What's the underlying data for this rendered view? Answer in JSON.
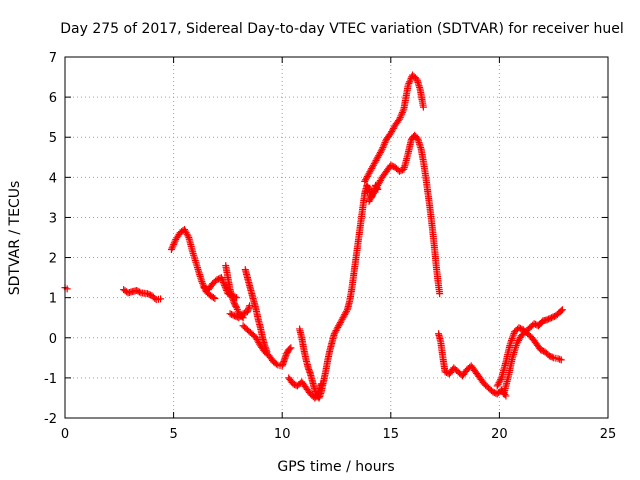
{
  "chart_data": {
    "type": "scatter",
    "title": "Day 275 of 2017, Sidereal Day-to-day VTEC variation (SDTVAR) for receiver huel",
    "xlabel": "GPS time / hours",
    "ylabel": "SDTVAR / TECUs",
    "xlim": [
      0,
      25
    ],
    "ylim": [
      -2,
      7
    ],
    "x_ticks": [
      "0",
      "5",
      "10",
      "15",
      "20",
      "25"
    ],
    "y_ticks": [
      "-2",
      "-1",
      "0",
      "1",
      "2",
      "3",
      "4",
      "5",
      "6",
      "7"
    ],
    "grid": true,
    "marker": "+",
    "series": [
      {
        "name": "SDTVAR",
        "color": "#ff0000",
        "segments": [
          [
            [
              0.0,
              1.25
            ],
            [
              0.1,
              1.22
            ]
          ],
          [
            [
              2.7,
              1.2
            ],
            [
              2.9,
              1.12
            ],
            [
              3.1,
              1.15
            ],
            [
              3.3,
              1.18
            ],
            [
              3.5,
              1.12
            ],
            [
              3.8,
              1.1
            ],
            [
              4.0,
              1.05
            ],
            [
              4.2,
              0.95
            ],
            [
              4.4,
              0.97
            ]
          ],
          [
            [
              4.9,
              2.2
            ],
            [
              5.1,
              2.45
            ],
            [
              5.3,
              2.62
            ],
            [
              5.5,
              2.7
            ],
            [
              5.7,
              2.5
            ],
            [
              5.9,
              2.1
            ],
            [
              6.1,
              1.75
            ],
            [
              6.3,
              1.4
            ],
            [
              6.5,
              1.15
            ],
            [
              6.7,
              1.05
            ],
            [
              6.9,
              0.98
            ]
          ],
          [
            [
              6.4,
              1.25
            ],
            [
              6.6,
              1.2
            ],
            [
              6.8,
              1.35
            ],
            [
              7.0,
              1.45
            ],
            [
              7.2,
              1.5
            ],
            [
              7.35,
              1.3
            ],
            [
              7.5,
              1.1
            ],
            [
              7.7,
              1.05
            ],
            [
              7.9,
              1.0
            ]
          ],
          [
            [
              7.4,
              1.8
            ],
            [
              7.5,
              1.5
            ],
            [
              7.6,
              1.2
            ],
            [
              7.7,
              1.0
            ],
            [
              7.8,
              0.85
            ],
            [
              7.9,
              0.75
            ],
            [
              8.0,
              0.62
            ],
            [
              8.1,
              0.55
            ],
            [
              8.2,
              0.5
            ]
          ],
          [
            [
              7.6,
              0.6
            ],
            [
              7.8,
              0.55
            ],
            [
              8.0,
              0.5
            ],
            [
              8.2,
              0.6
            ],
            [
              8.4,
              0.65
            ],
            [
              8.5,
              0.8
            ]
          ],
          [
            [
              8.3,
              1.7
            ],
            [
              8.4,
              1.5
            ],
            [
              8.5,
              1.3
            ],
            [
              8.6,
              1.1
            ],
            [
              8.7,
              0.9
            ],
            [
              8.8,
              0.7
            ],
            [
              8.9,
              0.45
            ],
            [
              9.0,
              0.25
            ],
            [
              9.1,
              0.0
            ],
            [
              9.2,
              -0.2
            ],
            [
              9.3,
              -0.35
            ]
          ],
          [
            [
              8.2,
              0.3
            ],
            [
              8.4,
              0.2
            ],
            [
              8.6,
              0.1
            ],
            [
              8.8,
              0.0
            ],
            [
              9.0,
              -0.2
            ],
            [
              9.2,
              -0.35
            ],
            [
              9.4,
              -0.45
            ],
            [
              9.6,
              -0.6
            ],
            [
              9.8,
              -0.68
            ],
            [
              10.0,
              -0.7
            ],
            [
              10.1,
              -0.55
            ],
            [
              10.2,
              -0.4
            ],
            [
              10.3,
              -0.3
            ],
            [
              10.4,
              -0.25
            ]
          ],
          [
            [
              10.3,
              -1.0
            ],
            [
              10.5,
              -1.15
            ],
            [
              10.7,
              -1.2
            ],
            [
              10.9,
              -1.1
            ],
            [
              11.1,
              -1.25
            ],
            [
              11.3,
              -1.4
            ],
            [
              11.5,
              -1.5
            ],
            [
              11.6,
              -1.45
            ],
            [
              11.7,
              -1.3
            ],
            [
              11.8,
              -1.15
            ]
          ],
          [
            [
              10.8,
              0.22
            ],
            [
              10.9,
              0.0
            ],
            [
              11.0,
              -0.3
            ],
            [
              11.1,
              -0.55
            ],
            [
              11.2,
              -0.75
            ],
            [
              11.3,
              -0.9
            ],
            [
              11.4,
              -1.1
            ],
            [
              11.5,
              -1.3
            ],
            [
              11.6,
              -1.45
            ],
            [
              11.7,
              -1.5
            ],
            [
              11.8,
              -1.35
            ],
            [
              11.9,
              -1.1
            ],
            [
              12.0,
              -0.85
            ],
            [
              12.1,
              -0.55
            ],
            [
              12.2,
              -0.3
            ],
            [
              12.3,
              -0.1
            ],
            [
              12.4,
              0.1
            ],
            [
              12.6,
              0.3
            ],
            [
              12.8,
              0.5
            ],
            [
              13.0,
              0.7
            ],
            [
              13.1,
              0.9
            ],
            [
              13.2,
              1.2
            ],
            [
              13.3,
              1.6
            ],
            [
              13.4,
              2.0
            ],
            [
              13.5,
              2.4
            ],
            [
              13.6,
              2.8
            ],
            [
              13.7,
              3.2
            ],
            [
              13.8,
              3.6
            ],
            [
              13.9,
              3.8
            ],
            [
              14.0,
              3.7
            ],
            [
              14.1,
              3.5
            ],
            [
              14.2,
              3.6
            ],
            [
              14.3,
              3.8
            ],
            [
              14.4,
              3.7
            ]
          ],
          [
            [
              13.8,
              3.9
            ],
            [
              14.0,
              4.1
            ],
            [
              14.2,
              4.3
            ],
            [
              14.4,
              4.5
            ],
            [
              14.6,
              4.7
            ],
            [
              14.8,
              4.95
            ],
            [
              15.0,
              5.1
            ],
            [
              15.2,
              5.3
            ],
            [
              15.4,
              5.45
            ],
            [
              15.6,
              5.7
            ],
            [
              15.8,
              6.3
            ],
            [
              16.0,
              6.55
            ],
            [
              16.2,
              6.45
            ],
            [
              16.35,
              6.2
            ],
            [
              16.45,
              5.9
            ],
            [
              16.5,
              5.75
            ]
          ],
          [
            [
              14.0,
              3.4
            ],
            [
              14.2,
              3.6
            ],
            [
              14.4,
              3.8
            ],
            [
              14.6,
              4.0
            ],
            [
              14.8,
              4.15
            ],
            [
              15.0,
              4.3
            ],
            [
              15.2,
              4.25
            ],
            [
              15.4,
              4.15
            ],
            [
              15.6,
              4.2
            ],
            [
              15.8,
              4.6
            ],
            [
              15.95,
              4.95
            ],
            [
              16.1,
              5.05
            ],
            [
              16.25,
              4.95
            ],
            [
              16.4,
              4.7
            ],
            [
              16.5,
              4.4
            ],
            [
              16.6,
              4.05
            ],
            [
              16.7,
              3.65
            ],
            [
              16.8,
              3.25
            ],
            [
              16.9,
              2.8
            ],
            [
              17.0,
              2.3
            ],
            [
              17.1,
              1.75
            ],
            [
              17.2,
              1.3
            ],
            [
              17.25,
              1.1
            ]
          ],
          [
            [
              17.2,
              0.1
            ],
            [
              17.3,
              -0.1
            ],
            [
              17.4,
              -0.5
            ],
            [
              17.5,
              -0.85
            ],
            [
              17.7,
              -0.9
            ],
            [
              17.9,
              -0.75
            ],
            [
              18.1,
              -0.85
            ],
            [
              18.3,
              -0.95
            ],
            [
              18.5,
              -0.8
            ],
            [
              18.7,
              -0.7
            ],
            [
              18.9,
              -0.85
            ],
            [
              19.1,
              -1.0
            ],
            [
              19.3,
              -1.15
            ],
            [
              19.5,
              -1.25
            ],
            [
              19.7,
              -1.35
            ],
            [
              19.9,
              -1.4
            ],
            [
              20.1,
              -1.3
            ],
            [
              20.3,
              -1.45
            ]
          ],
          [
            [
              19.9,
              -1.2
            ],
            [
              20.1,
              -1.0
            ],
            [
              20.3,
              -0.6
            ],
            [
              20.5,
              -0.15
            ],
            [
              20.7,
              0.15
            ],
            [
              20.9,
              0.25
            ],
            [
              21.1,
              0.2
            ],
            [
              21.3,
              0.1
            ],
            [
              21.5,
              0.0
            ],
            [
              21.7,
              -0.15
            ],
            [
              21.9,
              -0.3
            ],
            [
              22.1,
              -0.35
            ],
            [
              22.3,
              -0.45
            ],
            [
              22.5,
              -0.5
            ],
            [
              22.7,
              -0.52
            ],
            [
              22.85,
              -0.55
            ]
          ],
          [
            [
              20.2,
              -1.4
            ],
            [
              20.4,
              -1.0
            ],
            [
              20.6,
              -0.5
            ],
            [
              20.8,
              -0.15
            ],
            [
              21.0,
              0.05
            ],
            [
              21.2,
              0.15
            ],
            [
              21.4,
              0.25
            ],
            [
              21.6,
              0.35
            ],
            [
              21.8,
              0.3
            ],
            [
              22.0,
              0.42
            ],
            [
              22.2,
              0.45
            ],
            [
              22.4,
              0.5
            ],
            [
              22.6,
              0.55
            ],
            [
              22.8,
              0.65
            ],
            [
              22.9,
              0.7
            ]
          ]
        ]
      }
    ]
  }
}
